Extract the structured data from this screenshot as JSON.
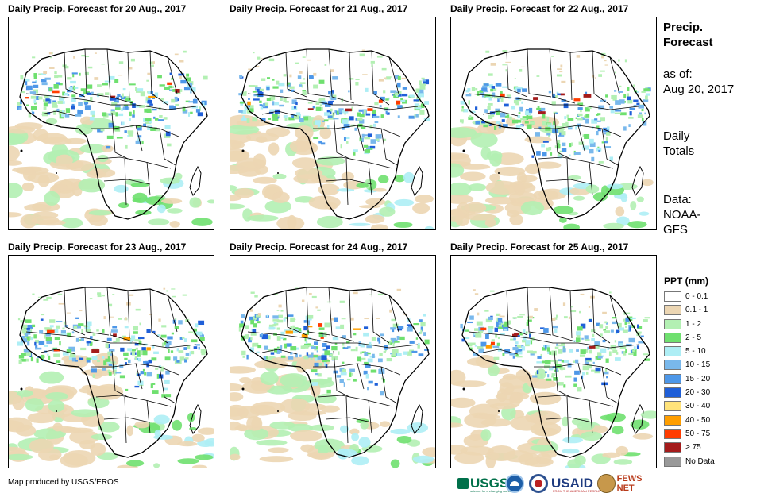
{
  "panels": [
    {
      "title": "Daily Precip. Forecast for 20 Aug., 2017"
    },
    {
      "title": "Daily Precip. Forecast for 21 Aug., 2017"
    },
    {
      "title": "Daily Precip. Forecast for 22 Aug., 2017"
    },
    {
      "title": "Daily Precip. Forecast for 23 Aug., 2017"
    },
    {
      "title": "Daily Precip. Forecast for 24 Aug., 2017"
    },
    {
      "title": "Daily Precip. Forecast for 25 Aug., 2017"
    }
  ],
  "sidebar": {
    "heading1": "Precip.",
    "heading2": "Forecast",
    "asof_label": "as of:",
    "asof_date": "Aug 20, 2017",
    "totals1": "Daily",
    "totals2": "Totals",
    "data1": "Data:",
    "data2": "NOAA-",
    "data3": "GFS"
  },
  "legend": {
    "title": "PPT (mm)",
    "items": [
      {
        "label": "0 - 0.1",
        "color": "#ffffff"
      },
      {
        "label": "0.1 - 1",
        "color": "#ecd6b3"
      },
      {
        "label": "1 - 2",
        "color": "#b3f0b3"
      },
      {
        "label": "2 - 5",
        "color": "#6fe06f"
      },
      {
        "label": "5 - 10",
        "color": "#aeeef5"
      },
      {
        "label": "10 - 15",
        "color": "#79b8ec"
      },
      {
        "label": "15 - 20",
        "color": "#4d97e8"
      },
      {
        "label": "20 - 30",
        "color": "#1f5fd8"
      },
      {
        "label": "30 - 40",
        "color": "#ffe37a"
      },
      {
        "label": "40 - 50",
        "color": "#ff9e00"
      },
      {
        "label": "50 - 75",
        "color": "#ff3c00"
      },
      {
        "label": "> 75",
        "color": "#a41b1b"
      },
      {
        "label": "No Data",
        "color": "#999999"
      }
    ]
  },
  "footer": {
    "credit": "Map produced by USGS/EROS",
    "usgs": "USGS",
    "usgs_tagline": "science for a changing world",
    "usaid": "USAID",
    "usaid_sub": "FROM THE AMERICAN PEOPLE",
    "fews": "FEWS NET"
  }
}
